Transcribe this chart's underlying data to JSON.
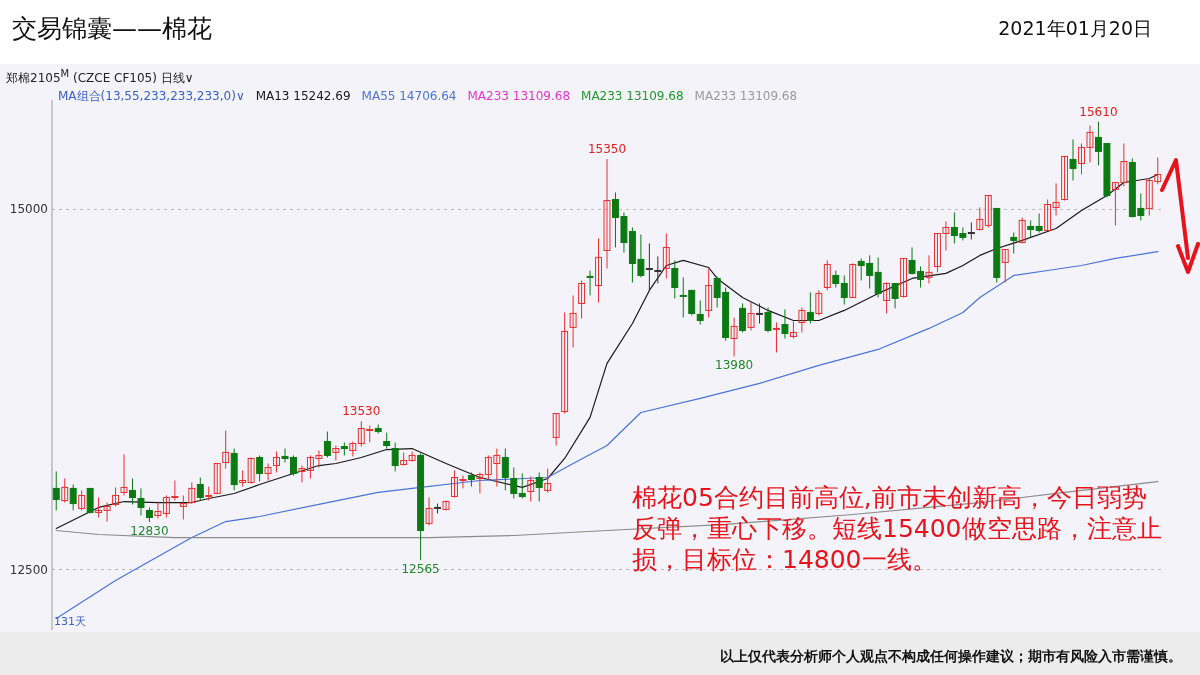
{
  "chart_data": {
    "type": "candlestick",
    "title": "交易锦囊——棉花",
    "subtitle": "2021年01月20日",
    "legend_title": "MA组合(13,55,233,233,233,0)∨",
    "categories": [
      null,
      null,
      null,
      null,
      null,
      null,
      null,
      null,
      null,
      null,
      null,
      null,
      null,
      null,
      null,
      null,
      null,
      null,
      null,
      null,
      null,
      null,
      null,
      null,
      null,
      null,
      null,
      null,
      null,
      null,
      null,
      null,
      null,
      null,
      null,
      null,
      null,
      null,
      null,
      null,
      null,
      null,
      null,
      null,
      null,
      null,
      null,
      null,
      null,
      null,
      null,
      null,
      null,
      null,
      null,
      null,
      null,
      null,
      null,
      null,
      null,
      null,
      null,
      null,
      null,
      null,
      null,
      null,
      null,
      null,
      null,
      null,
      null,
      null,
      null,
      null,
      null,
      null,
      null,
      null,
      null,
      null,
      null,
      null,
      null,
      null,
      null,
      null,
      null,
      null,
      null,
      null,
      null,
      null,
      null,
      null,
      null,
      null,
      null,
      null,
      null,
      null,
      null,
      null,
      null,
      null,
      null,
      null,
      null,
      null,
      null,
      null,
      null,
      null,
      null,
      null,
      null,
      null,
      null,
      null,
      null,
      null,
      null,
      null,
      null,
      null,
      null,
      null,
      null,
      null,
      null
    ],
    "ohlc": [
      [
        13063,
        13181,
        12910,
        12986
      ],
      [
        12979,
        13132,
        12965,
        13070
      ],
      [
        13063,
        13090,
        12910,
        12958
      ],
      [
        12924,
        13049,
        12910,
        13014
      ],
      [
        13063,
        13063,
        12889,
        12896
      ],
      [
        12896,
        13000,
        12861,
        12910
      ],
      [
        12910,
        12965,
        12833,
        12938
      ],
      [
        12951,
        13070,
        12938,
        13014
      ],
      [
        13035,
        13299,
        13014,
        13070
      ],
      [
        13049,
        13132,
        12951,
        13000
      ],
      [
        12993,
        13063,
        12875,
        12931
      ],
      [
        12910,
        12931,
        12830,
        12861
      ],
      [
        12875,
        12972,
        12854,
        12903
      ],
      [
        12889,
        13014,
        12861,
        13000
      ],
      [
        13000,
        13118,
        12979,
        13007
      ],
      [
        12938,
        13014,
        12847,
        12958
      ],
      [
        12965,
        13104,
        12958,
        13063
      ],
      [
        13090,
        13139,
        12979,
        13000
      ],
      [
        13007,
        13076,
        12979,
        13014
      ],
      [
        13028,
        13236,
        13028,
        13236
      ],
      [
        13243,
        13465,
        13201,
        13313
      ],
      [
        13306,
        13340,
        13049,
        13090
      ],
      [
        13104,
        13188,
        13076,
        13118
      ],
      [
        13104,
        13278,
        13097,
        13271
      ],
      [
        13278,
        13292,
        13111,
        13167
      ],
      [
        13167,
        13236,
        13118,
        13208
      ],
      [
        13222,
        13320,
        13174,
        13278
      ],
      [
        13285,
        13340,
        13243,
        13271
      ],
      [
        13278,
        13292,
        13153,
        13167
      ],
      [
        13181,
        13222,
        13104,
        13201
      ],
      [
        13188,
        13292,
        13132,
        13278
      ],
      [
        13271,
        13326,
        13208,
        13292
      ],
      [
        13389,
        13458,
        13278,
        13292
      ],
      [
        13313,
        13361,
        13257,
        13340
      ],
      [
        13354,
        13382,
        13292,
        13340
      ],
      [
        13326,
        13389,
        13285,
        13375
      ],
      [
        13375,
        13530,
        13354,
        13479
      ],
      [
        13465,
        13500,
        13382,
        13472
      ],
      [
        13479,
        13507,
        13444,
        13458
      ],
      [
        13389,
        13451,
        13340,
        13361
      ],
      [
        13340,
        13382,
        13181,
        13222
      ],
      [
        13229,
        13313,
        13222,
        13257
      ],
      [
        13257,
        13320,
        13250,
        13292
      ],
      [
        13292,
        13306,
        12565,
        12771
      ],
      [
        12820,
        13000,
        12806,
        12924
      ],
      [
        12931,
        12958,
        12889,
        12931
      ],
      [
        12917,
        12979,
        12910,
        12972
      ],
      [
        13007,
        13188,
        13000,
        13139
      ],
      [
        13118,
        13153,
        13063,
        13125
      ],
      [
        13153,
        13174,
        13076,
        13125
      ],
      [
        13132,
        13174,
        13028,
        13160
      ],
      [
        13160,
        13292,
        13125,
        13278
      ],
      [
        13236,
        13340,
        13076,
        13292
      ],
      [
        13278,
        13340,
        13049,
        13139
      ],
      [
        13132,
        13208,
        12993,
        13028
      ],
      [
        13028,
        13167,
        12993,
        13007
      ],
      [
        13042,
        13146,
        12972,
        13118
      ],
      [
        13139,
        13174,
        12972,
        13070
      ],
      [
        13049,
        13201,
        13035,
        13097
      ],
      [
        13417,
        13583,
        13361,
        13583
      ],
      [
        13597,
        14285,
        13583,
        14153
      ],
      [
        14181,
        14403,
        14042,
        14278
      ],
      [
        14347,
        14507,
        14243,
        14486
      ],
      [
        14535,
        14576,
        14403,
        14528
      ],
      [
        14472,
        14799,
        14354,
        14667
      ],
      [
        14715,
        15350,
        14590,
        15062
      ],
      [
        15069,
        15118,
        14736,
        14944
      ],
      [
        14951,
        14979,
        14701,
        14771
      ],
      [
        14847,
        14875,
        14493,
        14625
      ],
      [
        14653,
        14826,
        14528,
        14542
      ],
      [
        14590,
        14764,
        14438,
        14590
      ],
      [
        14576,
        14674,
        14486,
        14576
      ],
      [
        14590,
        14833,
        14521,
        14736
      ],
      [
        14590,
        14646,
        14382,
        14458
      ],
      [
        14403,
        14528,
        14250,
        14396
      ],
      [
        14438,
        14438,
        14264,
        14278
      ],
      [
        14271,
        14368,
        14201,
        14229
      ],
      [
        14299,
        14590,
        14250,
        14472
      ],
      [
        14521,
        14535,
        14319,
        14389
      ],
      [
        14424,
        14458,
        14090,
        14111
      ],
      [
        14104,
        14250,
        13980,
        14188
      ],
      [
        14313,
        14347,
        14146,
        14160
      ],
      [
        14181,
        14361,
        14160,
        14278
      ],
      [
        14278,
        14347,
        14208,
        14278
      ],
      [
        14285,
        14319,
        14146,
        14160
      ],
      [
        14167,
        14215,
        14007,
        14174
      ],
      [
        14201,
        14306,
        14104,
        14139
      ],
      [
        14118,
        14222,
        14104,
        14146
      ],
      [
        14215,
        14319,
        14146,
        14299
      ],
      [
        14285,
        14424,
        14208,
        14229
      ],
      [
        14278,
        14438,
        14264,
        14417
      ],
      [
        14458,
        14646,
        14438,
        14618
      ],
      [
        14542,
        14576,
        14458,
        14486
      ],
      [
        14486,
        14542,
        14340,
        14389
      ],
      [
        14389,
        14625,
        14389,
        14618
      ],
      [
        14639,
        14660,
        14507,
        14611
      ],
      [
        14625,
        14681,
        14451,
        14542
      ],
      [
        14563,
        14667,
        14389,
        14417
      ],
      [
        14368,
        14493,
        14278,
        14486
      ],
      [
        14486,
        14486,
        14313,
        14382
      ],
      [
        14396,
        14660,
        14389,
        14660
      ],
      [
        14646,
        14736,
        14549,
        14556
      ],
      [
        14569,
        14604,
        14458,
        14514
      ],
      [
        14528,
        14681,
        14486,
        14563
      ],
      [
        14604,
        14833,
        14563,
        14833
      ],
      [
        14833,
        14917,
        14715,
        14875
      ],
      [
        14875,
        14979,
        14764,
        14819
      ],
      [
        14833,
        14875,
        14785,
        14806
      ],
      [
        14840,
        14910,
        14792,
        14840
      ],
      [
        14861,
        15014,
        14854,
        14931
      ],
      [
        14889,
        15097,
        14875,
        15097
      ],
      [
        15007,
        15007,
        14493,
        14528
      ],
      [
        14632,
        14722,
        14493,
        14722
      ],
      [
        14806,
        14840,
        14694,
        14785
      ],
      [
        14771,
        14944,
        14764,
        14924
      ],
      [
        14882,
        14924,
        14806,
        14861
      ],
      [
        14882,
        14972,
        14840,
        14854
      ],
      [
        14854,
        15069,
        14854,
        15035
      ],
      [
        15014,
        15181,
        14958,
        15049
      ],
      [
        15069,
        15368,
        15062,
        15368
      ],
      [
        15347,
        15486,
        15201,
        15285
      ],
      [
        15319,
        15458,
        15243,
        15431
      ],
      [
        15431,
        15583,
        15326,
        15535
      ],
      [
        15500,
        15610,
        15306,
        15403
      ],
      [
        15458,
        15458,
        15083,
        15097
      ],
      [
        15139,
        15187,
        14889,
        15187
      ],
      [
        15187,
        15458,
        15160,
        15333
      ],
      [
        15326,
        15354,
        14944,
        14951
      ],
      [
        15007,
        15111,
        14924,
        14958
      ],
      [
        15007,
        15215,
        14958,
        15201
      ],
      [
        15194,
        15361,
        15174,
        15243
      ]
    ],
    "series": [
      {
        "name": "MA13 15242.69",
        "type": "line",
        "color": "#1a1a1a",
        "values": [
          12785,
          null,
          null,
          null,
          null,
          12931,
          null,
          null,
          12972,
          null,
          null,
          null,
          12965,
          null,
          null,
          null,
          12965,
          null,
          12993,
          null,
          null,
          13028,
          null,
          null,
          13090,
          null,
          null,
          null,
          13167,
          null,
          null,
          13222,
          null,
          13236,
          null,
          null,
          13278,
          null,
          null,
          13333,
          null,
          null,
          13340,
          null,
          null,
          null,
          13236,
          null,
          null,
          null,
          13139,
          null,
          null,
          null,
          null,
          13070,
          null,
          null,
          13132,
          null,
          13271,
          null,
          null,
          13556,
          null,
          13931,
          null,
          null,
          14208,
          null,
          14438,
          null,
          14611,
          null,
          14646,
          null,
          null,
          14597,
          14521,
          null,
          null,
          14389,
          null,
          null,
          14299,
          null,
          null,
          14229,
          null,
          null,
          14229,
          null,
          null,
          14299,
          null,
          null,
          null,
          14417,
          null,
          null,
          null,
          14521,
          null,
          null,
          null,
          14556,
          null,
          14611,
          null,
          14681,
          null,
          14729,
          null,
          null,
          14785,
          null,
          null,
          null,
          14868,
          null,
          null,
          14993,
          null,
          null,
          15097,
          null,
          15187,
          null,
          null,
          15215,
          15243
        ]
      },
      {
        "name": "MA55 14706.64",
        "type": "line",
        "color": "#4a73d9",
        "values": [
          12160,
          null,
          null,
          null,
          null,
          null,
          null,
          12424,
          null,
          null,
          null,
          null,
          null,
          null,
          null,
          null,
          12722,
          null,
          null,
          null,
          12833,
          null,
          null,
          null,
          12868,
          null,
          null,
          null,
          null,
          null,
          null,
          null,
          12965,
          null,
          null,
          null,
          null,
          null,
          13035,
          null,
          null,
          null,
          13063,
          null,
          null,
          null,
          null,
          null,
          null,
          null,
          13118,
          null,
          null,
          null,
          null,
          null,
          null,
          null,
          13139,
          null,
          null,
          13236,
          null,
          null,
          null,
          13361,
          null,
          null,
          null,
          13590,
          null,
          null,
          null,
          null,
          null,
          null,
          13688,
          null,
          null,
          null,
          null,
          null,
          null,
          13792,
          null,
          null,
          null,
          null,
          null,
          null,
          13917,
          null,
          null,
          null,
          null,
          null,
          null,
          14028,
          null,
          null,
          null,
          null,
          null,
          14174,
          null,
          null,
          null,
          14285,
          null,
          14389,
          null,
          null,
          null,
          14542,
          null,
          null,
          null,
          14576,
          null,
          null,
          null,
          14611,
          null,
          null,
          null,
          14660,
          null,
          null,
          null,
          null,
          14707
        ]
      },
      {
        "name": "MA233 13109.68",
        "type": "line",
        "color": "#8c8c8c",
        "values": [
          12771,
          null,
          null,
          null,
          null,
          12743,
          null,
          null,
          null,
          null,
          null,
          null,
          null,
          null,
          12722,
          null,
          null,
          null,
          null,
          null,
          null,
          null,
          null,
          null,
          null,
          null,
          null,
          null,
          null,
          12722,
          null,
          null,
          null,
          null,
          null,
          null,
          null,
          null,
          null,
          null,
          null,
          null,
          null,
          null,
          12722,
          null,
          null,
          null,
          null,
          null,
          null,
          null,
          null,
          null,
          12736,
          null,
          null,
          null,
          null,
          null,
          null,
          null,
          null,
          null,
          null,
          12771,
          null,
          null,
          null,
          null,
          null,
          null,
          null,
          null,
          null,
          null,
          null,
          null,
          null,
          12813,
          null,
          null,
          null,
          null,
          null,
          null,
          null,
          null,
          null,
          null,
          null,
          null,
          null,
          null,
          12882,
          null,
          null,
          null,
          null,
          null,
          null,
          null,
          null,
          null,
          null,
          null,
          null,
          null,
          null,
          12965,
          null,
          null,
          null,
          null,
          null,
          null,
          null,
          null,
          null,
          13035,
          null,
          null,
          null,
          null,
          null,
          null,
          null,
          null,
          null,
          null,
          13110
        ]
      }
    ],
    "ylim": [
      12080,
      15760
    ],
    "yticks": [
      12500,
      15000
    ],
    "grid": "y",
    "tick_labels": "y",
    "legend": "top left",
    "annotations": [
      "MA233 13109.68",
      "MA233 13109.68",
      "郑棉2105$^{M}$ (CZCE CF105)  日线∨",
      "131天",
      {
        "text": "15350",
        "y": 15350
      },
      {
        "text": "15610",
        "y": 15610
      },
      {
        "text": "13530",
        "y": 13530
      },
      {
        "text": "12830",
        "y": 12830
      },
      {
        "text": "12565",
        "y": 12565
      },
      {
        "text": "13980",
        "y": 13980
      },
      "棉花05合约目前高位,前市未创新高，今日弱势反弹，重心下移。短线15400做空思路，注意止损，目标位：14800一线。",
      "以上仅代表分析师个人观点不构成任何操作建议；期市有风险入市需谨慎。"
    ]
  }
}
